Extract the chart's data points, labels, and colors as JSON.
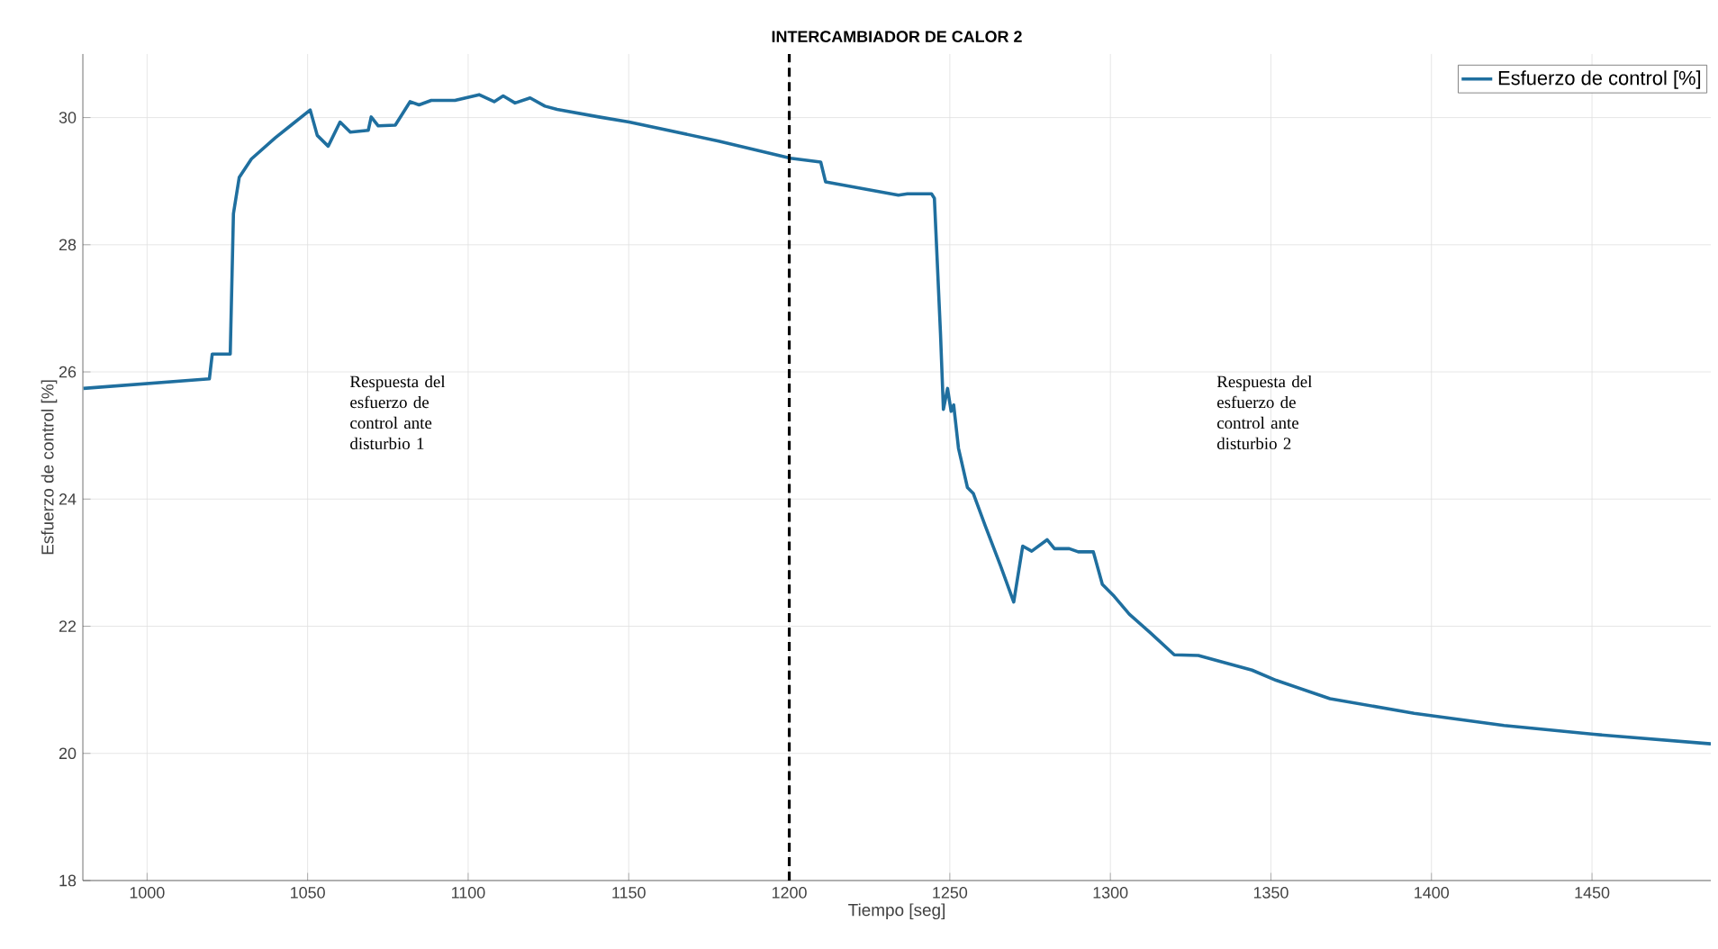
{
  "chart_data": {
    "type": "line",
    "title": "INTERCAMBIADOR DE CALOR 2",
    "xlabel": "Tiempo [seg]",
    "ylabel": "Esfuerzo de control [%]",
    "xlim": [
      980,
      1487
    ],
    "ylim": [
      18,
      31
    ],
    "xticks": [
      1000,
      1050,
      1100,
      1150,
      1200,
      1250,
      1300,
      1350,
      1400,
      1450
    ],
    "yticks": [
      18,
      20,
      22,
      24,
      26,
      28,
      30
    ],
    "grid": true,
    "legend": "top right",
    "line_style": "solid",
    "series": [
      {
        "name": "Esfuerzo de control [%]",
        "color": "#1f6f9f",
        "x": [
          980.2,
          1019.4,
          1020.3,
          1025.9,
          1026.9,
          1028.7,
          1032.5,
          1039.9,
          1044.6,
          1050.8,
          1053,
          1056.4,
          1060.1,
          1063.3,
          1068.9,
          1069.8,
          1072,
          1077.3,
          1081.9,
          1084.7,
          1088.5,
          1095.9,
          1103.4,
          1108.1,
          1110.9,
          1114.6,
          1119.3,
          1123.9,
          1127.7,
          1140.7,
          1150.1,
          1178,
          1200.4,
          1209.8,
          1211.3,
          1234,
          1236.8,
          1244.3,
          1245.2,
          1247.1,
          1248,
          1249.3,
          1250.4,
          1251.2,
          1252.7,
          1255.5,
          1257.3,
          1261.1,
          1265.8,
          1269.9,
          1272.7,
          1275.5,
          1280.3,
          1282.6,
          1287.2,
          1290,
          1294.7,
          1297.5,
          1301.2,
          1305.9,
          1312.4,
          1319.9,
          1327.4,
          1344.1,
          1351.6,
          1368.4,
          1394.6,
          1422.6,
          1450.6,
          1487
        ],
        "values": [
          25.74,
          25.89,
          26.28,
          26.28,
          28.49,
          29.06,
          29.35,
          29.68,
          29.87,
          30.12,
          29.72,
          29.55,
          29.93,
          29.77,
          29.8,
          30.01,
          29.87,
          29.88,
          30.25,
          30.2,
          30.27,
          30.27,
          30.36,
          30.25,
          30.34,
          30.23,
          30.31,
          30.18,
          30.13,
          30.01,
          29.93,
          29.63,
          29.36,
          29.3,
          28.99,
          28.78,
          28.8,
          28.8,
          28.73,
          26.6,
          25.41,
          25.74,
          25.38,
          25.48,
          24.8,
          24.18,
          24.09,
          23.57,
          22.95,
          22.38,
          23.26,
          23.18,
          23.36,
          23.22,
          23.22,
          23.17,
          23.17,
          22.66,
          22.47,
          22.19,
          21.9,
          21.55,
          21.54,
          21.31,
          21.15,
          20.86,
          20.63,
          20.44,
          20.3,
          20.15
        ]
      }
    ],
    "ref_lines": [
      {
        "axis": "x",
        "value": 1200,
        "color": "#000000",
        "line_style": "dashed"
      }
    ],
    "annotations": [
      "Respuesta del esfuerzo de control ante disturbio 1",
      "Respuesta del esfuerzo de control ante disturbio 2"
    ]
  }
}
